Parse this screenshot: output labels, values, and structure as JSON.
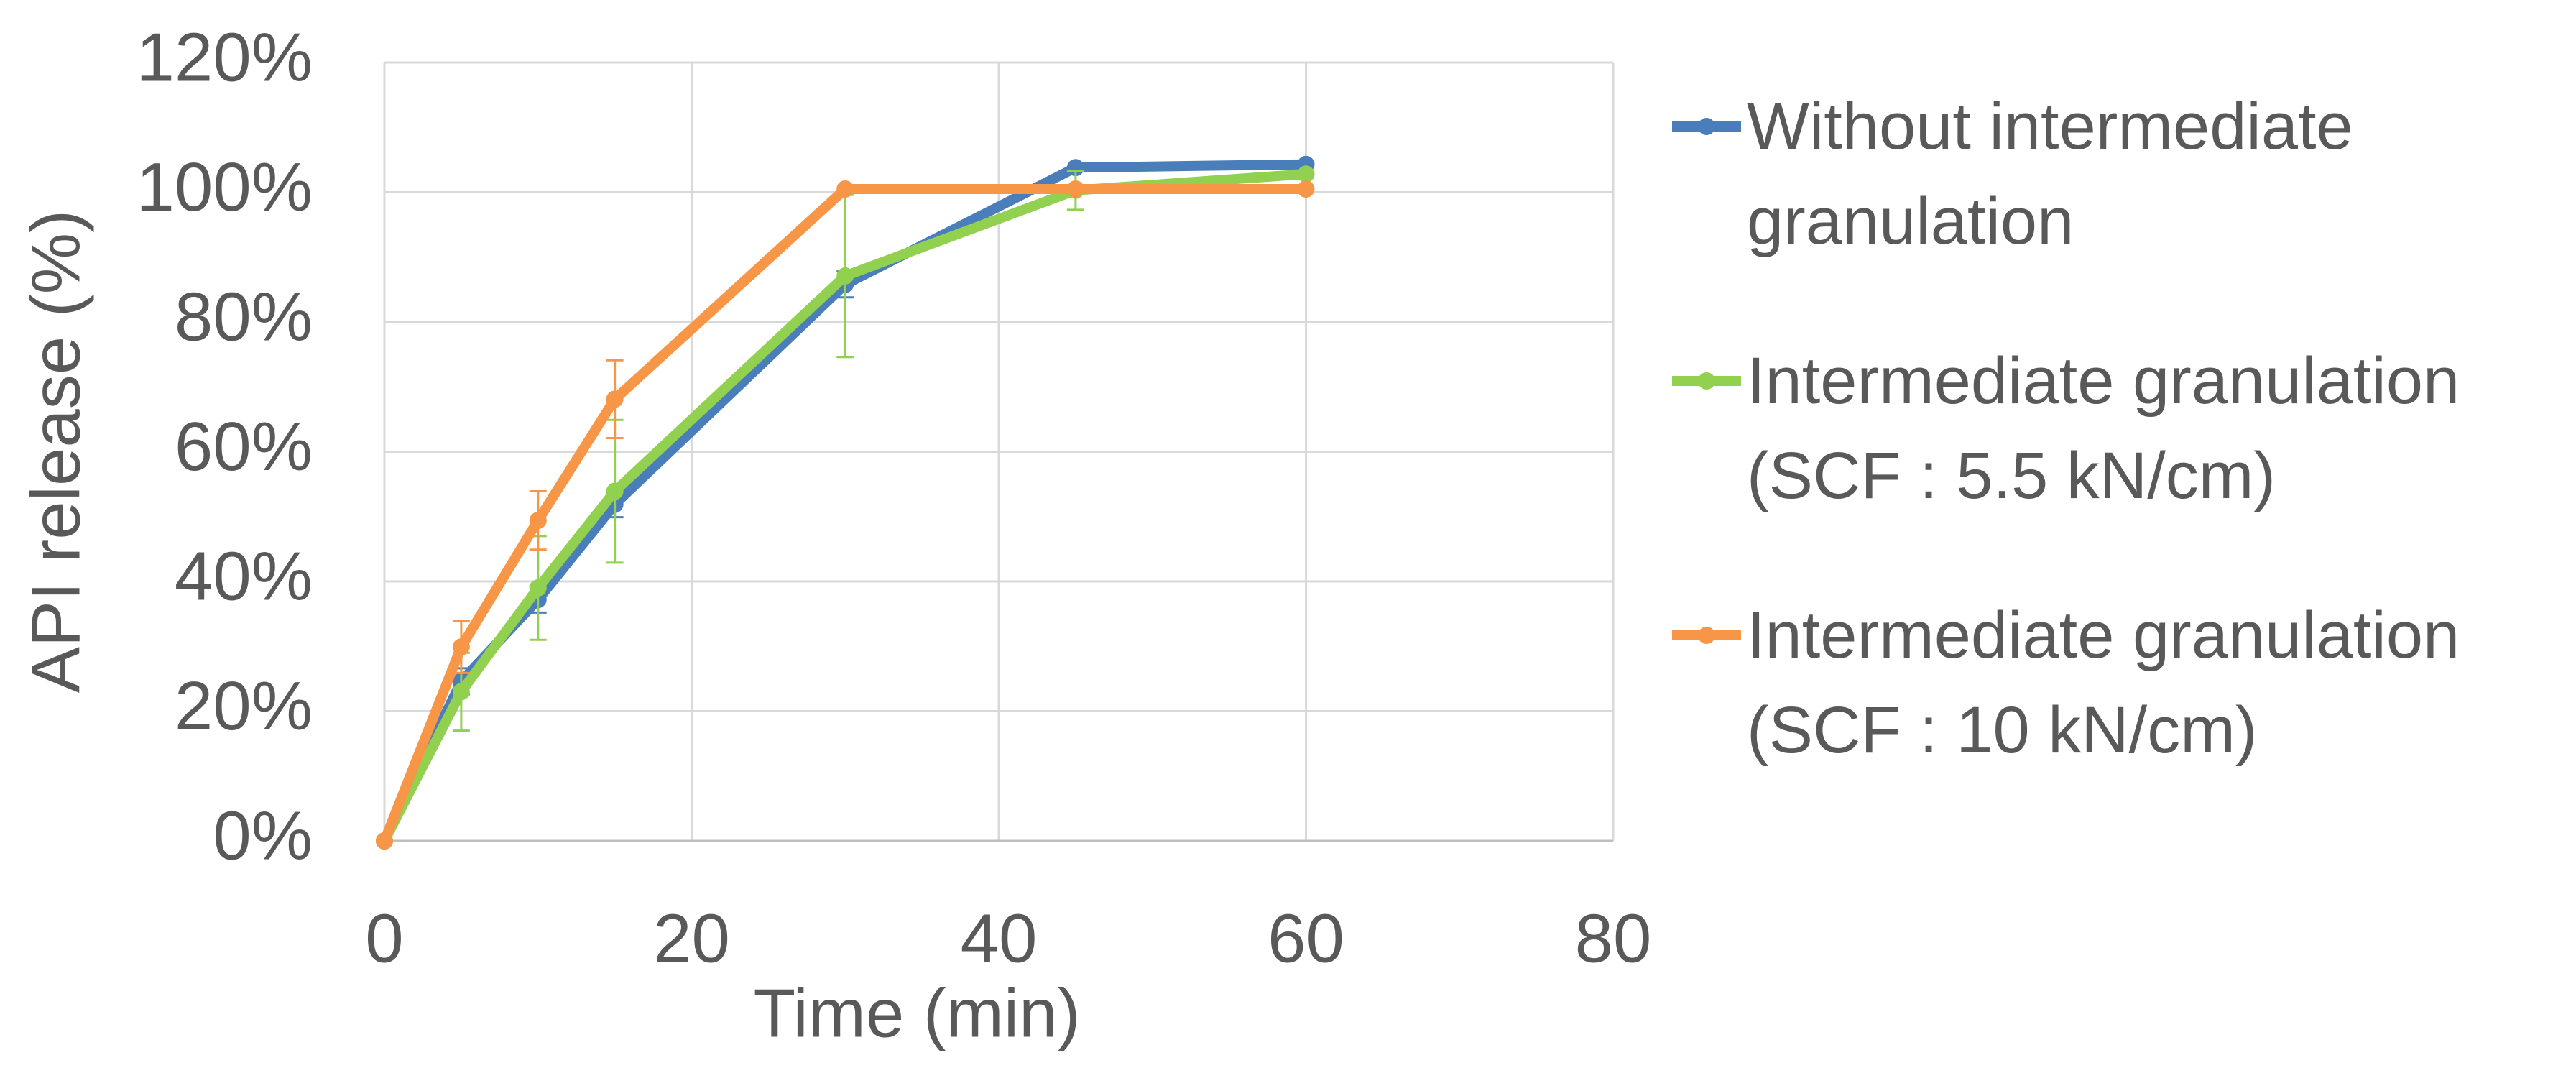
{
  "chart_data": {
    "type": "line",
    "x_label": "Time (min)",
    "y_label": "API release (%)",
    "xlim": [
      0,
      80
    ],
    "xticks": [
      0,
      20,
      40,
      60,
      80
    ],
    "ylim": [
      0,
      120
    ],
    "yticks": [
      {
        "value": 0,
        "label": "0%"
      },
      {
        "value": 20,
        "label": "20%"
      },
      {
        "value": 40,
        "label": "40%"
      },
      {
        "value": 60,
        "label": "60%"
      },
      {
        "value": 80,
        "label": "80%"
      },
      {
        "value": 100,
        "label": "100%"
      },
      {
        "value": 120,
        "label": "120%"
      }
    ],
    "grid": true,
    "legend": "right",
    "x": [
      0,
      5,
      10,
      15,
      30,
      45,
      60
    ],
    "series": [
      {
        "name": "Without intermediate granulation",
        "color": "#4a7ebb",
        "values": [
          0,
          24.6,
          37.2,
          51.9,
          85.8,
          103.8,
          104.3
        ],
        "errors": [
          null,
          2,
          2,
          2,
          2,
          null,
          null
        ]
      },
      {
        "name": "Intermediate granulation (SCF : 5.5 kN/cm)",
        "color": "#92d050",
        "values": [
          0,
          23,
          39,
          53.9,
          87.1,
          100.3,
          102.8
        ],
        "errors": [
          null,
          6,
          8,
          11,
          12.5,
          3,
          null
        ]
      },
      {
        "name": "Intermediate granulation (SCF : 10 kN/cm)",
        "color": "#f79646",
        "values": [
          0,
          29.9,
          49.4,
          68.1,
          100.5,
          100.5,
          100.5
        ],
        "errors": [
          null,
          4,
          4.5,
          6,
          null,
          null,
          null
        ]
      }
    ]
  }
}
